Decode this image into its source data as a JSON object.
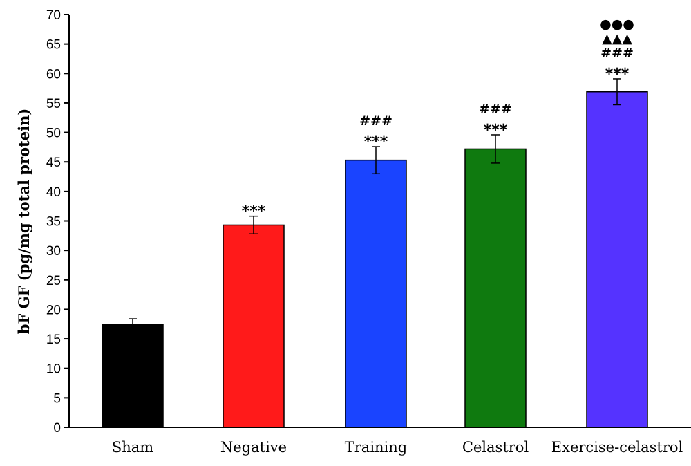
{
  "chart_data": {
    "type": "bar",
    "title": "",
    "xlabel": "",
    "ylabel": "bF GF (pg/mg total protein)",
    "ylim": [
      0,
      70
    ],
    "yticks": [
      0,
      5,
      10,
      15,
      20,
      25,
      30,
      35,
      40,
      45,
      50,
      55,
      60,
      65,
      70
    ],
    "grid": false,
    "legend": "none",
    "categories": [
      "Sham",
      "Negative",
      "Training",
      "Celastrol",
      "Exercise-celastrol"
    ],
    "values": [
      17.4,
      34.3,
      45.3,
      47.2,
      56.9
    ],
    "errors": [
      1.0,
      1.5,
      2.3,
      2.4,
      2.2
    ],
    "colors": [
      "#000000",
      "#ff1a1a",
      "#1a44ff",
      "#0f7a0f",
      "#5533ff"
    ],
    "annotations": [
      [],
      [
        "***"
      ],
      [
        "***",
        "###"
      ],
      [
        "***",
        "###"
      ],
      [
        "***",
        "###",
        "▲▲▲",
        "●●●"
      ]
    ]
  }
}
